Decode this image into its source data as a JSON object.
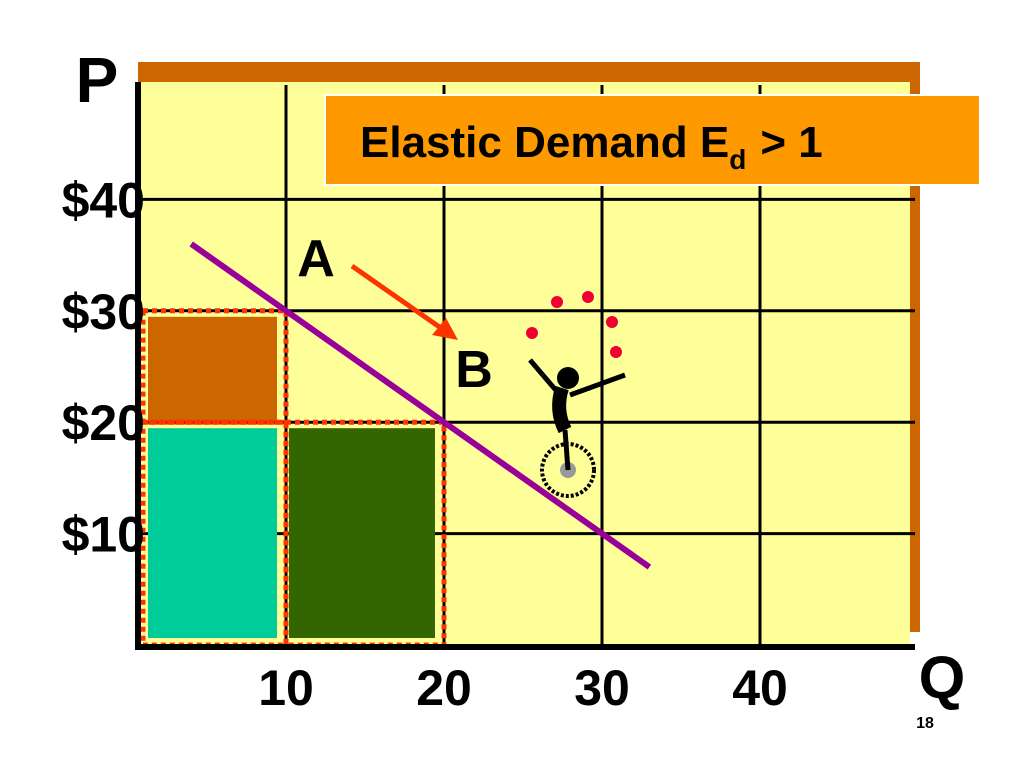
{
  "chart_data": {
    "type": "demand",
    "title": "Elastic Demand E",
    "title_subscript": "d",
    "title_suffix": "> 1",
    "y_label": "P",
    "x_label": "Q",
    "page_number": "18",
    "xlim": [
      0,
      50
    ],
    "ylim": [
      0,
      50
    ],
    "xticks": [
      10,
      20,
      30,
      40
    ],
    "yticks": [
      {
        "value": 10,
        "label": "$10"
      },
      {
        "value": 20,
        "label": "$20"
      },
      {
        "value": 30,
        "label": "$30"
      },
      {
        "value": 40,
        "label": "$40"
      }
    ],
    "grid": true,
    "demand": {
      "x": [
        4,
        10,
        20,
        33
      ],
      "values": [
        36,
        30,
        20,
        7
      ],
      "color": "#990099"
    },
    "rectangles": [
      {
        "x": [
          0,
          10
        ],
        "y": [
          20,
          30
        ],
        "color": "#cc6600"
      },
      {
        "x": [
          0,
          10
        ],
        "y": [
          0,
          20
        ],
        "color": "#00cc99"
      },
      {
        "x": [
          10,
          20
        ],
        "y": [
          0,
          20
        ],
        "color": "#336600"
      }
    ],
    "points": [
      {
        "label": "A",
        "x": 10,
        "y": 30
      },
      {
        "label": "B",
        "x": 20,
        "y": 20
      }
    ]
  }
}
